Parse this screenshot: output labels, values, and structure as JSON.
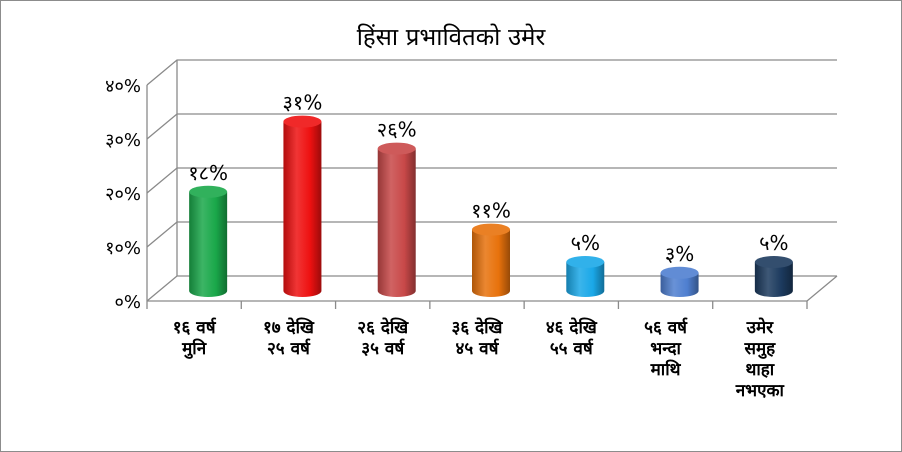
{
  "chart_data": {
    "type": "bar",
    "title": "हिंसा प्रभावितको उमेर",
    "categories": [
      [
        "१६ वर्ष",
        "मुनि"
      ],
      [
        "१७ देखि",
        "२५ वर्ष"
      ],
      [
        "२६ देखि",
        "३५ वर्ष"
      ],
      [
        "३६ देखि",
        "४५ वर्ष"
      ],
      [
        "४६ देखि",
        "५५ वर्ष"
      ],
      [
        "५६ वर्ष",
        "भन्दा",
        "माथि"
      ],
      [
        "उमेर",
        "समुह",
        "थाहा",
        "नभएका"
      ]
    ],
    "values": [
      18,
      31,
      26,
      11,
      5,
      3,
      5
    ],
    "data_labels": [
      "१८%",
      "३१%",
      "२६%",
      "११%",
      "५%",
      "३%",
      "५%"
    ],
    "y_ticks": [
      {
        "value": 0,
        "label": "०%"
      },
      {
        "value": 10,
        "label": "१०%"
      },
      {
        "value": 20,
        "label": "२०%"
      },
      {
        "value": 30,
        "label": "३०%"
      },
      {
        "value": 40,
        "label": "४०%"
      }
    ],
    "ylim": [
      0,
      40
    ],
    "grid": true,
    "legend": "none",
    "colors": [
      "#1aa84a",
      "#ee1111",
      "#c84848",
      "#e8720c",
      "#1aa8e8",
      "#4f7fd0",
      "#1c3a5e"
    ]
  }
}
